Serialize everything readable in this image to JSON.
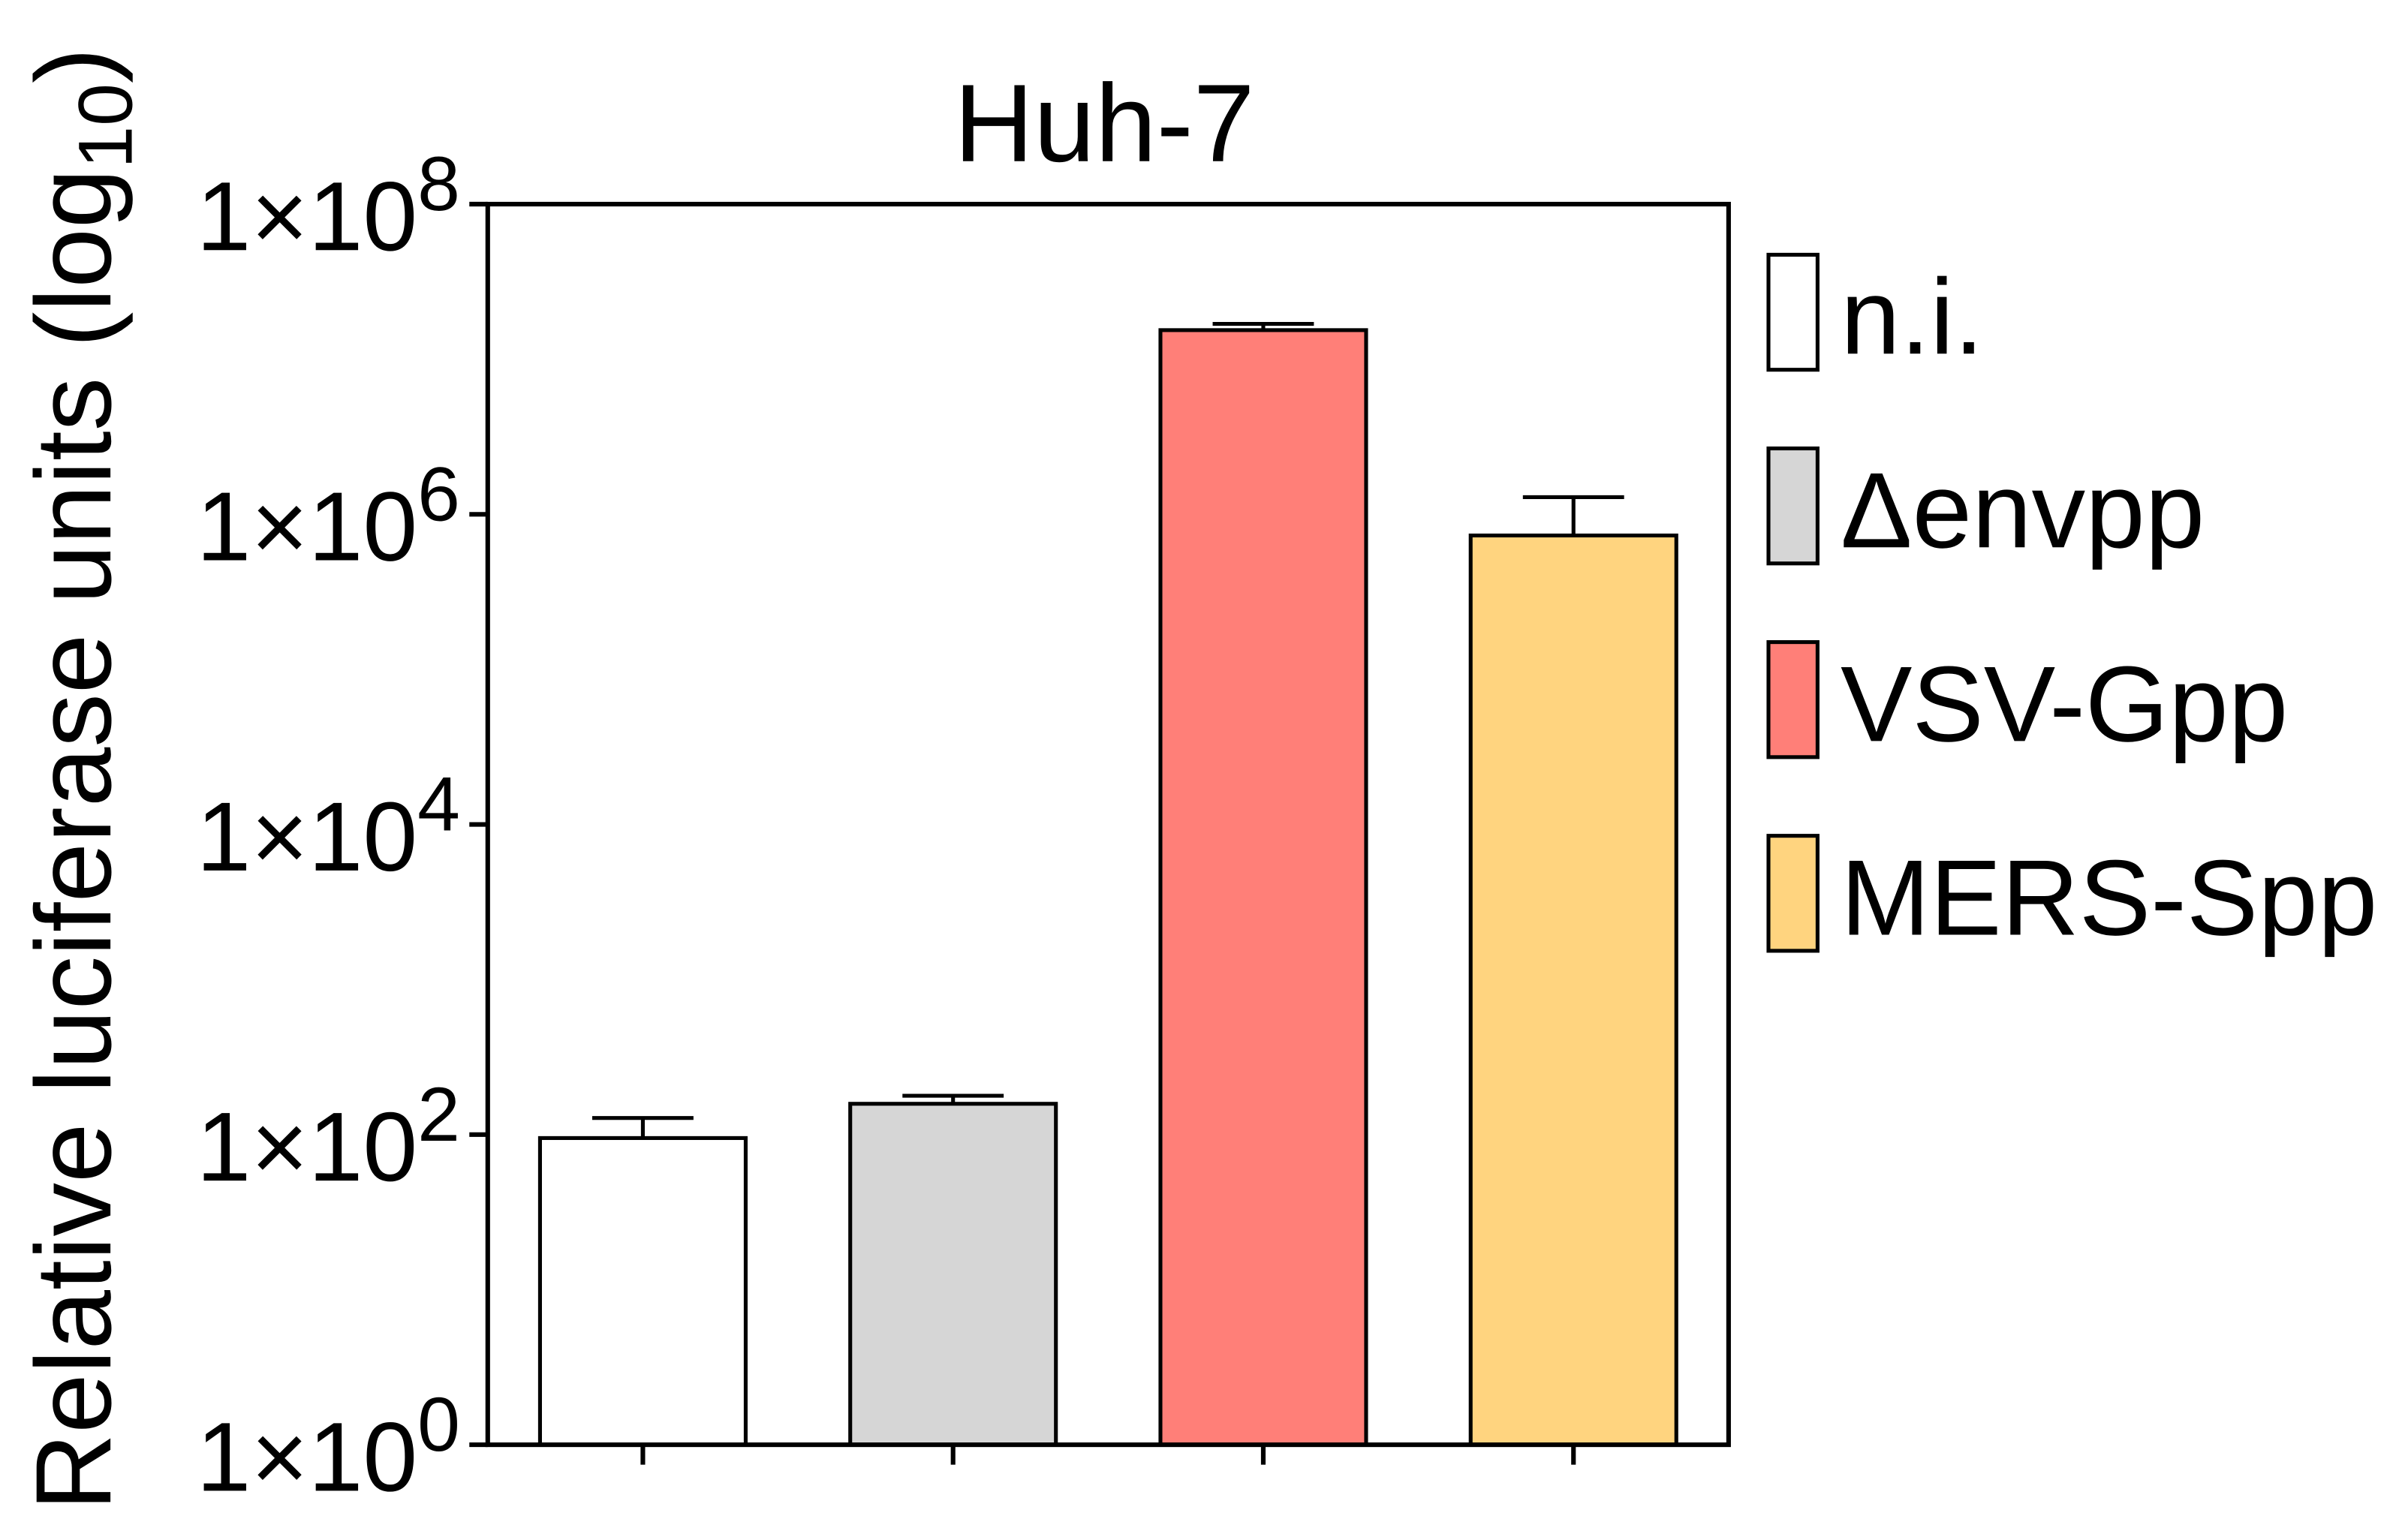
{
  "chart_data": {
    "type": "bar",
    "title": "Huh-7",
    "xlabel": "",
    "ylabel": {
      "text": "Relative luciferase units (log",
      "sub": "10",
      "end": ")"
    },
    "yscale": "log",
    "ylim": [
      1,
      100000000
    ],
    "yticks": [
      {
        "value": 1,
        "base": "1×10",
        "exp": "0"
      },
      {
        "value": 100,
        "base": "1×10",
        "exp": "2"
      },
      {
        "value": 10000,
        "base": "1×10",
        "exp": "4"
      },
      {
        "value": 1000000,
        "base": "1×10",
        "exp": "6"
      },
      {
        "value": 100000000,
        "base": "1×10",
        "exp": "8"
      }
    ],
    "categories": [
      "n.i.",
      "Δenvpp",
      "VSV-Gpp",
      "MERS-Spp"
    ],
    "values": [
      95,
      158,
      15400000,
      730000
    ],
    "error_top": [
      128,
      178,
      16900000,
      1290000
    ],
    "colors": [
      "#ffffff",
      "#d6d6d6",
      "#ff7f78",
      "#ffd47f"
    ],
    "edge_color": "#000000",
    "grid": false,
    "legend": {
      "position": "right"
    }
  }
}
